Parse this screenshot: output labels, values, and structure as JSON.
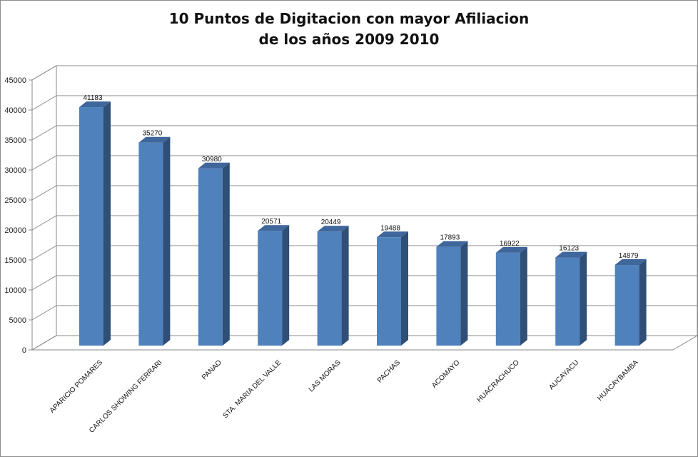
{
  "chart_data": {
    "type": "bar",
    "title_line1": "10 Puntos de Digitacion con mayor Afiliacion",
    "title_line2": "de los años 2009 2010",
    "categories": [
      "APARICIO POMARES",
      "CARLOS SHOWING FERRARI",
      "PANAO",
      "STA. MARIA DEL VALLE",
      "LAS MORAS",
      "PACHAS",
      "ACOMAYO",
      "HUACRACHUCO",
      "AUCAYACU",
      "HUACAYBAMBA"
    ],
    "values": [
      41183,
      35270,
      30980,
      20571,
      20449,
      19488,
      17893,
      16922,
      16123,
      14879
    ],
    "ylim": [
      0,
      45000
    ],
    "yticks": [
      "0",
      "5000",
      "10000",
      "15000",
      "20000",
      "25000",
      "30000",
      "35000",
      "40000",
      "45000"
    ],
    "grid": true,
    "legend": "none",
    "style": "3d-column",
    "colors": {
      "bar_front": "#4f81bd",
      "bar_side": "#2f4f77",
      "bar_top": "#3f679c",
      "grid": "#8a8a8a"
    }
  }
}
